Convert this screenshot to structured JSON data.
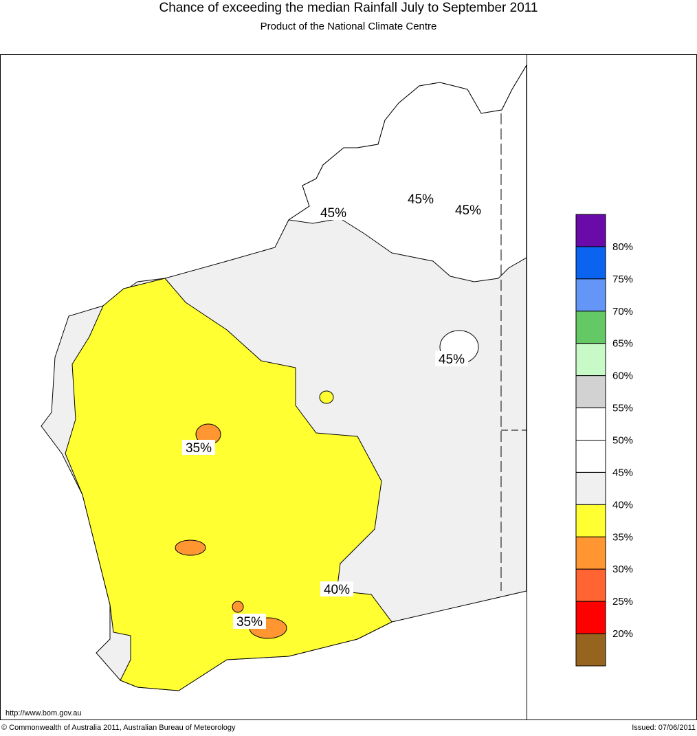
{
  "header": {
    "title": "Chance of exceeding the median Rainfall July to September 2011",
    "subtitle": "Product of the National Climate Centre"
  },
  "contour_labels": [
    "45%",
    "45%",
    "45%",
    "45%",
    "35%",
    "40%",
    "35%"
  ],
  "legend": {
    "colors": [
      "#6a0aa8",
      "#0a64f0",
      "#6496f8",
      "#64c864",
      "#c8fac8",
      "#d2d2d2",
      "#ffffff",
      "#ffffff",
      "#f0f0f0",
      "#ffff32",
      "#ff9632",
      "#ff6432",
      "#ff0000",
      "#96641e"
    ],
    "labels": [
      "80%",
      "75%",
      "70%",
      "65%",
      "60%",
      "55%",
      "50%",
      "45%",
      "40%",
      "35%",
      "30%",
      "25%",
      "20%"
    ]
  },
  "footer": {
    "url": "http://www.bom.gov.au",
    "copyright": "© Commonwealth of Australia 2011, Australian Bureau of Meteorology",
    "issued": "Issued: 07/06/2011"
  }
}
